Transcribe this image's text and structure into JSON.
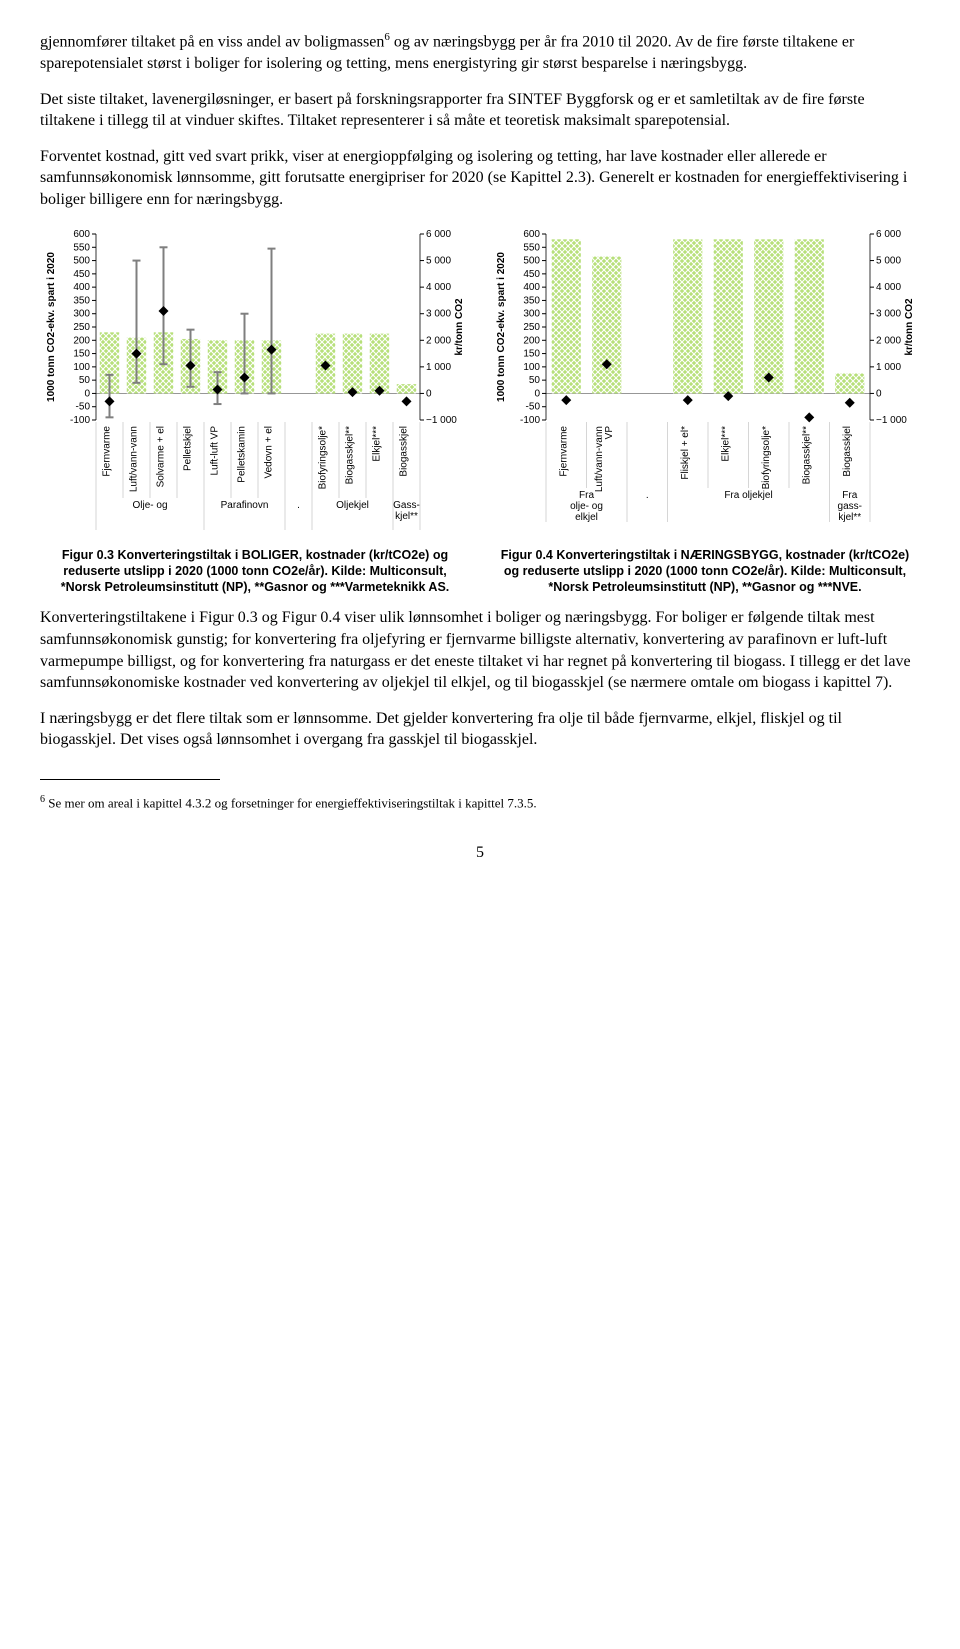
{
  "para1": "gjennomfører tiltaket på en viss andel av boligmassen",
  "para1_sup": "6",
  "para1_cont": " og av næringsbygg per år fra 2010 til 2020. Av de fire første tiltakene er sparepotensialet størst i boliger for isolering og tetting, mens energistyring gir størst besparelse i næringsbygg.",
  "para2": "Det siste tiltaket, lavenergiløsninger, er basert på forskningsrapporter fra SINTEF Byggforsk og er et samletiltak av de fire første tiltakene i tillegg til at vinduer skiftes. Tiltaket representerer i så måte et teoretisk maksimalt sparepotensial.",
  "para3": "Forventet kostnad, gitt ved svart prikk, viser at energioppfølging og isolering og tetting, har lave kostnader eller allerede er samfunnsøkonomisk lønnsomme, gitt forutsatte energipriser for 2020 (se Kapittel 2.3). Generelt er kostnaden for energieffektivisering i boliger billigere enn for næringsbygg.",
  "para4": "Konverteringstiltakene i Figur 0.3 og Figur 0.4 viser ulik lønnsomhet i boliger og næringsbygg. For boliger er følgende tiltak mest samfunnsøkonomisk gunstig; for konvertering fra oljefyring er fjernvarme billigste alternativ, konvertering av parafinovn er luft-luft varmepumpe billigst, og for konvertering fra naturgass er det eneste tiltaket vi har regnet på konvertering til biogass. I tillegg er det lave samfunnsøkonomiske kostnader ved konvertering av oljekjel til elkjel, og til biogasskjel (se nærmere omtale om biogass i kapittel 7).",
  "para5": "I næringsbygg er det flere tiltak som er lønnsomme. Det gjelder konvertering fra olje til både fjernvarme, elkjel, fliskjel og til biogasskjel. Det vises også lønnsomhet i overgang fra gasskjel til biogasskjel.",
  "footnote_num": "6",
  "footnote_text": " Se mer om areal i kapittel 4.3.2 og forsetninger for energieffektiviseringstiltak i kapittel 7.3.5.",
  "page_number": "5",
  "caption_left": "Figur 0.3 Konverteringstiltak i BOLIGER, kostnader (kr/tCO2e) og reduserte utslipp i 2020 (1000 tonn CO2e/år).  Kilde: Multiconsult, *Norsk Petroleumsinstitutt (NP), **Gasnor og ***Varmeteknikk AS.",
  "caption_right": "Figur 0.4 Konverteringstiltak i NÆRINGSBYGG, kostnader (kr/tCO2e) og reduserte utslipp i 2020 (1000 tonn CO2e/år).  Kilde: Multiconsult, *Norsk Petroleumsinstitutt (NP), **Gasnor og ***NVE.",
  "chart_style": {
    "bar_fill": "#b7e07a",
    "bar_hatch": "#ffffff",
    "marker_color": "#000000",
    "whisker_color": "#7f7f7f",
    "axis_color": "#000000",
    "background": "#ffffff",
    "label_font": "Arial, sans-serif",
    "label_size_num": 10,
    "label_size_cat": 10,
    "group_label_size": 10
  },
  "chart_left": {
    "y_left": {
      "label": "1000 tonn CO2-ekv. spart i 2020",
      "min": -100,
      "max": 600,
      "step": 50,
      "label_fontsize": 10
    },
    "y_right": {
      "label": "kr/tonn CO2",
      "min": -1000,
      "max": 6000,
      "step": 1000,
      "label_fontsize": 10
    },
    "groups": [
      {
        "label": "Olje- og",
        "span": [
          0,
          3
        ]
      },
      {
        "label": "Parafinovn",
        "span": [
          4,
          6
        ]
      },
      {
        "label": ".",
        "span": [
          7,
          7
        ]
      },
      {
        "label": "Oljekjel",
        "span": [
          8,
          10
        ]
      },
      {
        "label": "Gass-\nkjel**",
        "span": [
          11,
          11
        ]
      }
    ],
    "items": [
      {
        "label": "Fjernvarme",
        "bar": 230,
        "point": -300,
        "lo": -900,
        "hi": 700
      },
      {
        "label": "Luft/vann-vann",
        "bar": 210,
        "point": 1500,
        "lo": 400,
        "hi": 5000
      },
      {
        "label": "Solvarme + el",
        "bar": 230,
        "point": 3100,
        "lo": 1100,
        "hi": 5500
      },
      {
        "label": "Pelletskjel",
        "bar": 205,
        "point": 1050,
        "lo": 250,
        "hi": 2400
      },
      {
        "label": "Luft-luft VP",
        "bar": 200,
        "point": 150,
        "lo": -400,
        "hi": 800
      },
      {
        "label": "Pelletskamin",
        "bar": 200,
        "point": 600,
        "lo": 0,
        "hi": 3000
      },
      {
        "label": "Vedovn + el",
        "bar": 200,
        "point": 1650,
        "lo": 0,
        "hi": 5450
      },
      {
        "label": "",
        "bar": 0,
        "point": null,
        "lo": null,
        "hi": null
      },
      {
        "label": "Biofyringsolje*",
        "bar": 225,
        "point": 1050,
        "lo": null,
        "hi": null
      },
      {
        "label": "Biogasskjel**",
        "bar": 225,
        "point": 50,
        "lo": null,
        "hi": null
      },
      {
        "label": "Elkjel***",
        "bar": 225,
        "point": 100,
        "lo": null,
        "hi": null
      },
      {
        "label": "Biogasskjel",
        "bar": 35,
        "point": -300,
        "lo": null,
        "hi": null
      }
    ]
  },
  "chart_right": {
    "y_left": {
      "label": "1000 tonn CO2-ekv. spart i 2020",
      "min": -100,
      "max": 600,
      "step": 50,
      "label_fontsize": 10
    },
    "y_right": {
      "label": "kr/tonn CO2",
      "min": -1000,
      "max": 6000,
      "step": 1000,
      "label_fontsize": 10
    },
    "groups": [
      {
        "label": "Fra\nolje- og\nelkjel",
        "span": [
          0,
          1
        ]
      },
      {
        "label": ".",
        "span": [
          2,
          2
        ]
      },
      {
        "label": "Fra oljekjel",
        "span": [
          3,
          6
        ]
      },
      {
        "label": "Fra\ngass-\nkjel**",
        "span": [
          7,
          7
        ]
      }
    ],
    "items": [
      {
        "label": "Fjernvarme",
        "bar": 580,
        "point": -250
      },
      {
        "label": "Luft/vann-vann\nVP",
        "bar": 515,
        "point": 1100
      },
      {
        "label": "",
        "bar": 0,
        "point": null
      },
      {
        "label": "Fliskjel + el*",
        "bar": 580,
        "point": -250
      },
      {
        "label": "Elkjel***",
        "bar": 580,
        "point": -100
      },
      {
        "label": "Biofyringsolje*",
        "bar": 580,
        "point": 600
      },
      {
        "label": "Biogasskjel**",
        "bar": 580,
        "point": -900
      },
      {
        "label": "Biogasskjel",
        "bar": 75,
        "point": -350
      }
    ]
  }
}
